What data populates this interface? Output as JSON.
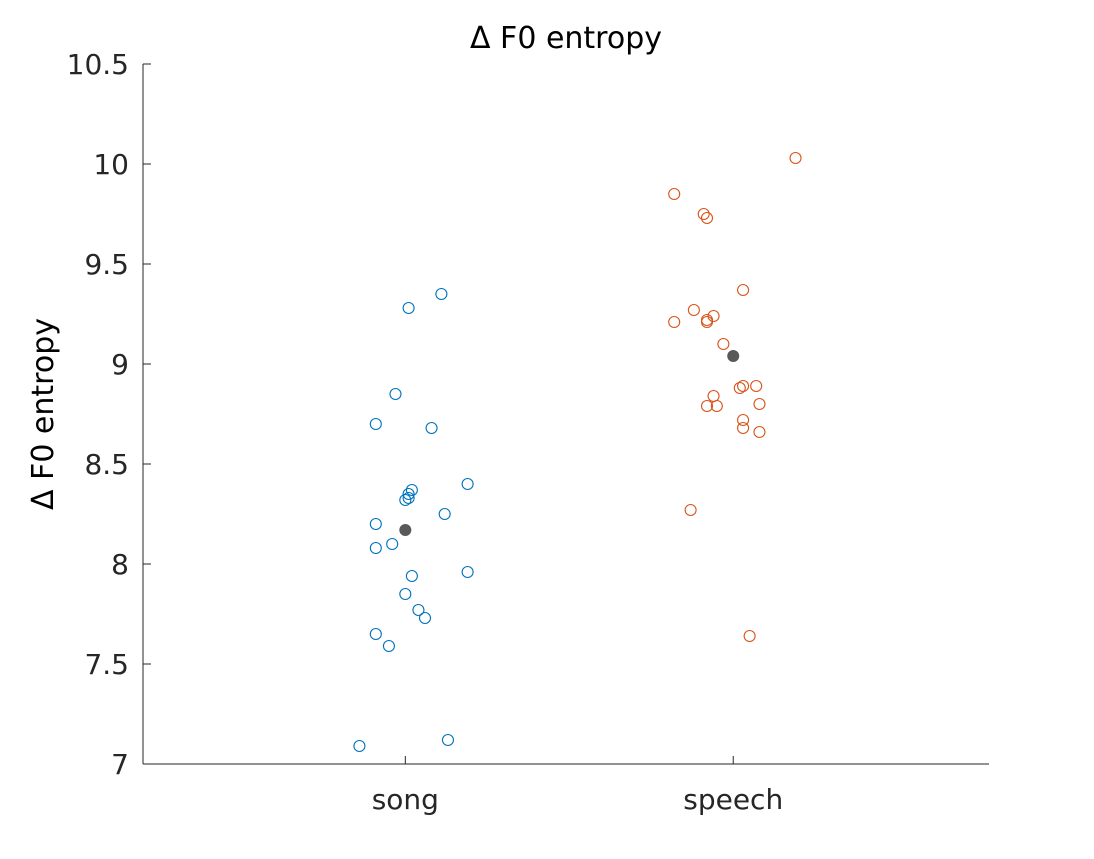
{
  "chart_data": {
    "type": "scatter",
    "title": "Δ F0 entropy",
    "xlabel": "",
    "ylabel": "Δ F0 entropy",
    "categories": [
      "song",
      "speech"
    ],
    "ylim": [
      7,
      10.5
    ],
    "yticks": [
      "7",
      "7.5",
      "8",
      "8.5",
      "9",
      "9.5",
      "10",
      "10.5"
    ],
    "grid": false,
    "colors": {
      "song": "#0072BD",
      "speech": "#D95319",
      "mean": "#595959",
      "axis": "#262626"
    },
    "series": [
      {
        "category": "song",
        "points": [
          {
            "x": 1.01,
            "y": 9.28
          },
          {
            "x": 1.11,
            "y": 9.35
          },
          {
            "x": 0.97,
            "y": 8.85
          },
          {
            "x": 0.91,
            "y": 8.7
          },
          {
            "x": 1.08,
            "y": 8.68
          },
          {
            "x": 1.19,
            "y": 8.4
          },
          {
            "x": 1.02,
            "y": 8.37
          },
          {
            "x": 1.01,
            "y": 8.35
          },
          {
            "x": 1.0,
            "y": 8.32
          },
          {
            "x": 1.01,
            "y": 8.33
          },
          {
            "x": 1.12,
            "y": 8.25
          },
          {
            "x": 0.91,
            "y": 8.2
          },
          {
            "x": 0.96,
            "y": 8.1
          },
          {
            "x": 0.91,
            "y": 8.08
          },
          {
            "x": 1.02,
            "y": 7.94
          },
          {
            "x": 1.19,
            "y": 7.96
          },
          {
            "x": 1.0,
            "y": 7.85
          },
          {
            "x": 1.04,
            "y": 7.77
          },
          {
            "x": 1.06,
            "y": 7.73
          },
          {
            "x": 0.91,
            "y": 7.65
          },
          {
            "x": 0.95,
            "y": 7.59
          },
          {
            "x": 1.13,
            "y": 7.12
          },
          {
            "x": 0.86,
            "y": 7.09
          }
        ],
        "mean": 8.17
      },
      {
        "category": "speech",
        "points": [
          {
            "x": 2.19,
            "y": 10.03
          },
          {
            "x": 1.82,
            "y": 9.85
          },
          {
            "x": 1.91,
            "y": 9.75
          },
          {
            "x": 1.92,
            "y": 9.73
          },
          {
            "x": 2.03,
            "y": 9.37
          },
          {
            "x": 1.88,
            "y": 9.27
          },
          {
            "x": 1.94,
            "y": 9.24
          },
          {
            "x": 1.92,
            "y": 9.22
          },
          {
            "x": 1.82,
            "y": 9.21
          },
          {
            "x": 1.92,
            "y": 9.21
          },
          {
            "x": 1.97,
            "y": 9.1
          },
          {
            "x": 2.07,
            "y": 8.89
          },
          {
            "x": 2.03,
            "y": 8.89
          },
          {
            "x": 2.02,
            "y": 8.88
          },
          {
            "x": 1.94,
            "y": 8.84
          },
          {
            "x": 1.92,
            "y": 8.79
          },
          {
            "x": 1.95,
            "y": 8.79
          },
          {
            "x": 2.08,
            "y": 8.8
          },
          {
            "x": 2.03,
            "y": 8.72
          },
          {
            "x": 2.03,
            "y": 8.68
          },
          {
            "x": 2.08,
            "y": 8.66
          },
          {
            "x": 1.87,
            "y": 8.27
          },
          {
            "x": 2.05,
            "y": 7.64
          }
        ],
        "mean": 9.04
      }
    ]
  }
}
